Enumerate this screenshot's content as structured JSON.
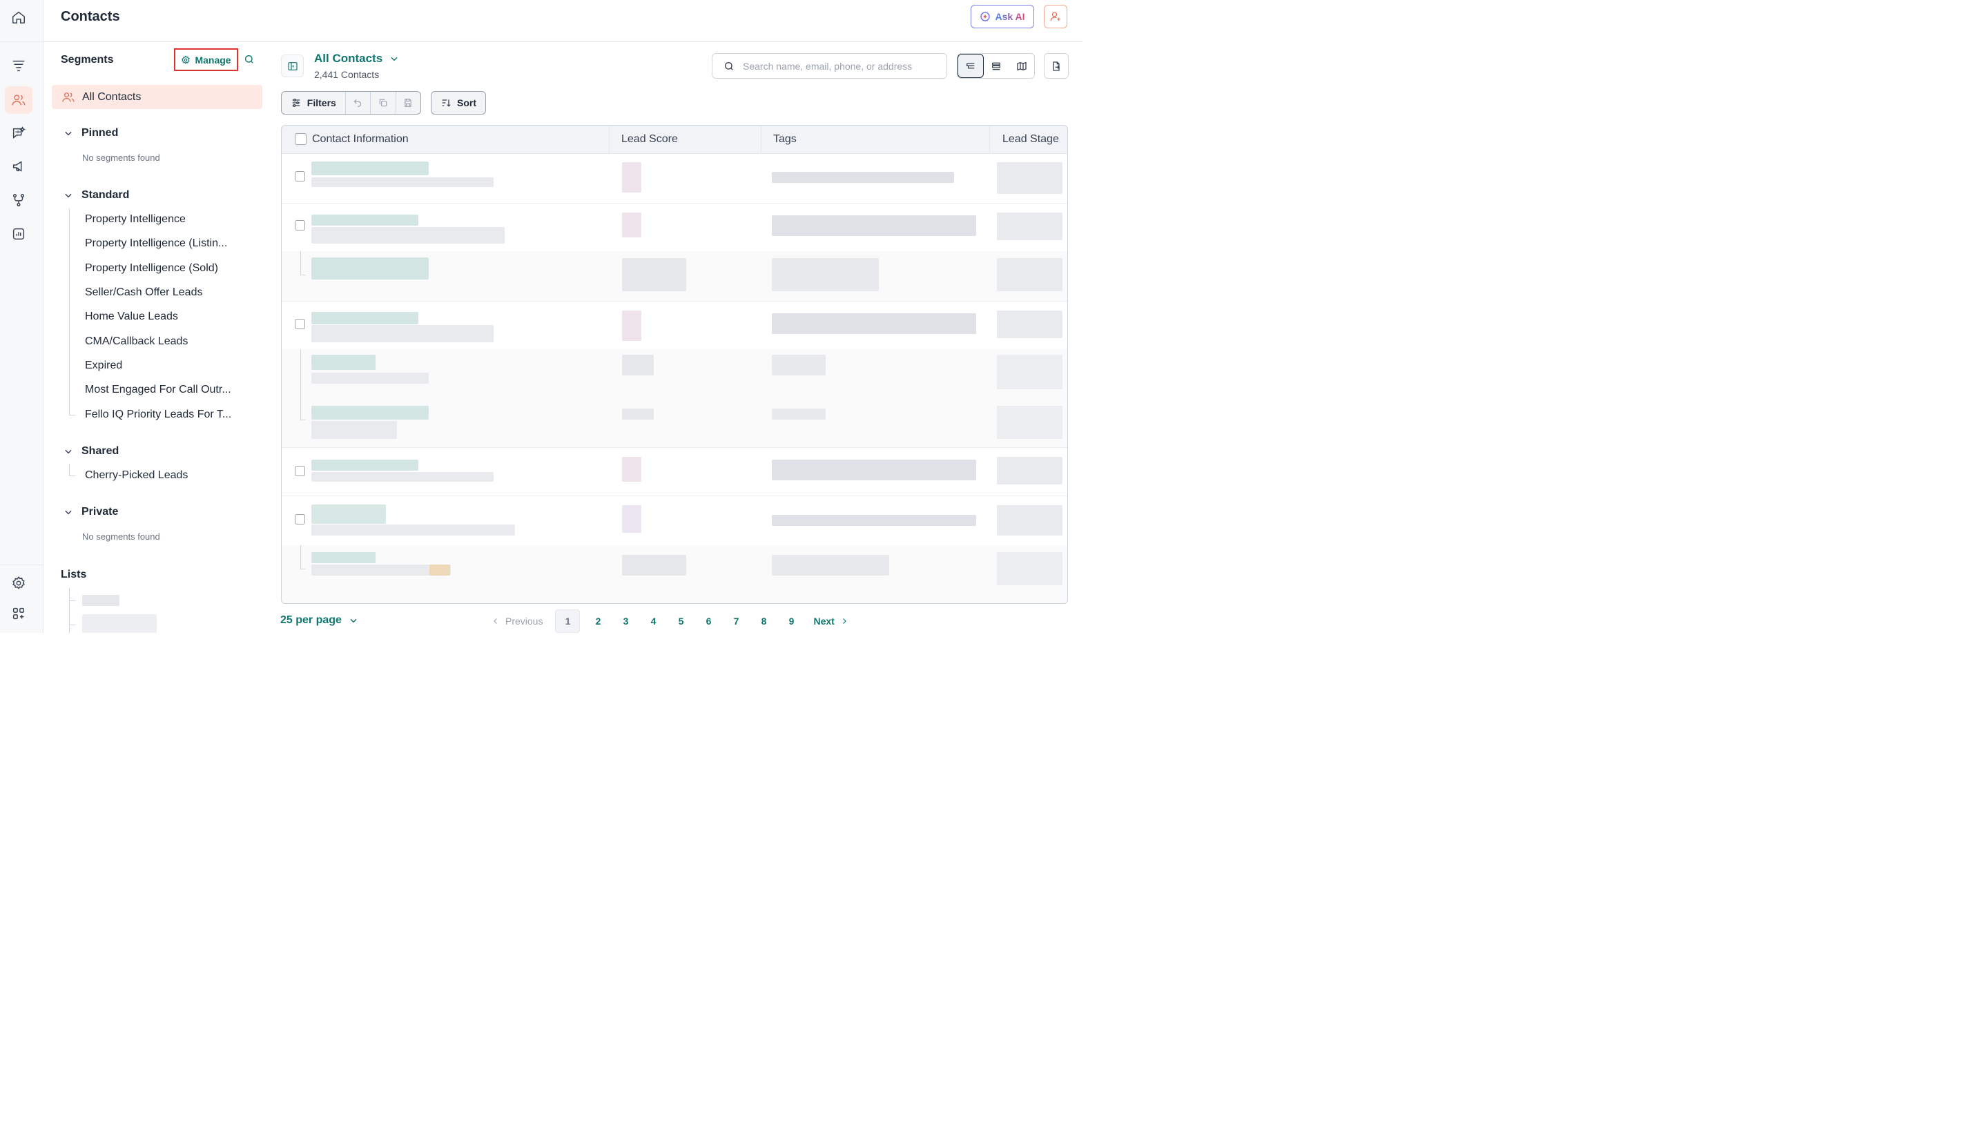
{
  "header": {
    "title": "Contacts",
    "ask_ai_label": "Ask AI"
  },
  "segments": {
    "title": "Segments",
    "manage_label": "Manage",
    "all_contacts_label": "All Contacts",
    "groups": {
      "pinned": {
        "label": "Pinned",
        "empty": "No segments found"
      },
      "standard": {
        "label": "Standard",
        "items": [
          "Property Intelligence",
          "Property Intelligence (Listin...",
          "Property Intelligence (Sold)",
          "Seller/Cash Offer Leads",
          "Home Value Leads",
          "CMA/Callback Leads",
          "Expired",
          "Most Engaged For Call Outr...",
          "Fello IQ Priority Leads For T..."
        ]
      },
      "shared": {
        "label": "Shared",
        "items": [
          "Cherry-Picked Leads"
        ]
      },
      "private": {
        "label": "Private",
        "empty": "No segments found"
      }
    },
    "lists_label": "Lists"
  },
  "view": {
    "title": "All Contacts",
    "count": "2,441 Contacts"
  },
  "search": {
    "placeholder": "Search name, email, phone, or address"
  },
  "toolbar": {
    "filters_label": "Filters",
    "sort_label": "Sort"
  },
  "table": {
    "columns": [
      "Contact Information",
      "Lead Score",
      "Tags",
      "Lead Stage"
    ]
  },
  "pagination": {
    "per_page": "25 per page",
    "previous": "Previous",
    "next": "Next",
    "pages": [
      "1",
      "2",
      "3",
      "4",
      "5",
      "6",
      "7",
      "8",
      "9"
    ]
  },
  "icons": {
    "rail": [
      "home-icon",
      "funnel-icon",
      "users-icon",
      "chat-icon",
      "megaphone-icon",
      "workflow-icon",
      "report-icon",
      "settings-icon",
      "apps-icon"
    ]
  },
  "colors": {
    "accent": "#0f766e",
    "active_bg": "#fde8e3",
    "highlight_border": "#e03131"
  }
}
